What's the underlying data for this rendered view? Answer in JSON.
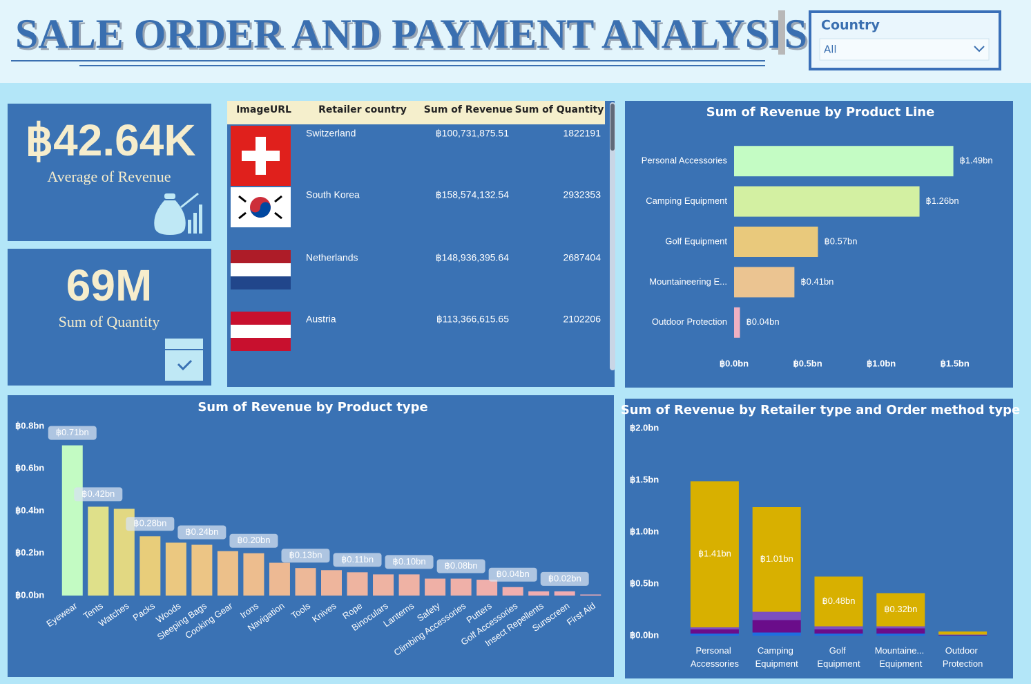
{
  "header": {
    "title": "SALE ORDER AND PAYMENT ANALYSIS"
  },
  "filter": {
    "label": "Country",
    "value": "All"
  },
  "cards": [
    {
      "value": "฿42.64K",
      "label": "Average of Revenue"
    },
    {
      "value": "69M",
      "label": "Sum of Quantity"
    }
  ],
  "table": {
    "columns": [
      "ImageURL",
      "Retailer country",
      "Sum of Revenue",
      "Sum of Quantity"
    ],
    "rows": [
      [
        "Switzerland",
        "฿100,731,875.51",
        1822191
      ],
      [
        "South Korea",
        "฿158,574,132.54",
        2932353
      ],
      [
        "Netherlands",
        "฿148,936,395.64",
        2687404
      ],
      [
        "Austria",
        "฿113,366,615.65",
        2102206
      ]
    ]
  },
  "chart_data": [
    {
      "type": "barh",
      "title": "Sum of Revenue by Product Line",
      "categories": [
        "Personal Accessories",
        "Camping Equipment",
        "Golf Equipment",
        "Mountaineering E...",
        "Outdoor Protection"
      ],
      "values": [
        1.49,
        1.26,
        0.57,
        0.41,
        0.04
      ],
      "value_labels": [
        "฿1.49bn",
        "฿1.26bn",
        "฿0.57bn",
        "฿0.41bn",
        "฿0.04bn"
      ],
      "colors": [
        "#c4fcc4",
        "#d3f0a2",
        "#e9c97c",
        "#ebc491",
        "#efb0c2"
      ],
      "xlim": [
        0,
        1.75
      ],
      "xticks": [
        {
          "value": 0,
          "label": "฿0.0bn"
        },
        {
          "value": 0.5,
          "label": "฿0.5bn"
        },
        {
          "value": 1.0,
          "label": "฿1.0bn"
        },
        {
          "value": 1.5,
          "label": "฿1.5bn"
        }
      ]
    },
    {
      "type": "bar",
      "title": "Sum of Revenue by Product type",
      "categories": [
        "Eyewear",
        "Tents",
        "Watches",
        "Packs",
        "Woods",
        "Sleeping Bags",
        "Cooking Gear",
        "Irons",
        "Navigation",
        "Tools",
        "Knives",
        "Rope",
        "Binoculars",
        "Lanterns",
        "Safety",
        "Climbing Accessories",
        "Putters",
        "Golf Accessories",
        "Insect Repellents",
        "Sunscreen",
        "First Aid"
      ],
      "values": [
        0.71,
        0.42,
        0.41,
        0.28,
        0.25,
        0.24,
        0.21,
        0.2,
        0.155,
        0.13,
        0.12,
        0.11,
        0.1,
        0.1,
        0.08,
        0.08,
        0.075,
        0.04,
        0.02,
        0.02,
        0.005
      ],
      "value_labels": [
        "฿0.71bn",
        "฿0.42bn",
        null,
        "฿0.28bn",
        null,
        "฿0.24bn",
        null,
        "฿0.20bn",
        null,
        "฿0.13bn",
        null,
        "฿0.11bn",
        null,
        "฿0.10bn",
        null,
        "฿0.08bn",
        null,
        "฿0.04bn",
        null,
        "฿0.02bn",
        null
      ],
      "colors": [
        "#c3fbc3",
        "#dfe08a",
        "#e2d882",
        "#e8cd7a",
        "#ebc880",
        "#ecc585",
        "#ecc08a",
        "#edbd8e",
        "#edb993",
        "#edb898",
        "#eeb59c",
        "#eeb4a0",
        "#eeb3a2",
        "#efb2a4",
        "#efb0a6",
        "#efb0a8",
        "#efafab",
        "#f0aeae",
        "#f0adb0",
        "#f0acb2",
        "#f0abb4"
      ],
      "ylim": [
        0,
        0.8
      ],
      "yticks": [
        {
          "value": 0,
          "label": "฿0.0bn"
        },
        {
          "value": 0.2,
          "label": "฿0.2bn"
        },
        {
          "value": 0.4,
          "label": "฿0.4bn"
        },
        {
          "value": 0.6,
          "label": "฿0.6bn"
        },
        {
          "value": 0.8,
          "label": "฿0.8bn"
        }
      ]
    },
    {
      "type": "stacked_bar",
      "title": "Sum of Revenue by Retailer type and Order method type",
      "categories": [
        "Personal Accessories",
        "Camping Equipment",
        "Golf Equipment",
        "Mountaine... Equipment",
        "Outdoor Protection"
      ],
      "series": [
        {
          "color": "#1f6fe0",
          "values": [
            0.02,
            0.03,
            0.02,
            0.02,
            0.002
          ]
        },
        {
          "color": "#6a0d8a",
          "values": [
            0.04,
            0.12,
            0.04,
            0.05,
            0.005
          ]
        },
        {
          "color": "#7b4fc0",
          "values": [
            0.02,
            0.08,
            0.03,
            0.02,
            0.003
          ]
        },
        {
          "color": "#d8b000",
          "values": [
            1.41,
            1.01,
            0.48,
            0.32,
            0.03
          ],
          "value_labels": [
            "฿1.41bn",
            "฿1.01bn",
            "฿0.48bn",
            "฿0.32bn",
            null
          ]
        }
      ],
      "ylim": [
        0,
        2.0
      ],
      "yticks": [
        {
          "value": 0,
          "label": "฿0.0bn"
        },
        {
          "value": 0.5,
          "label": "฿0.5bn"
        },
        {
          "value": 1.0,
          "label": "฿1.0bn"
        },
        {
          "value": 1.5,
          "label": "฿1.5bn"
        },
        {
          "value": 2.0,
          "label": "฿2.0bn"
        }
      ]
    }
  ]
}
